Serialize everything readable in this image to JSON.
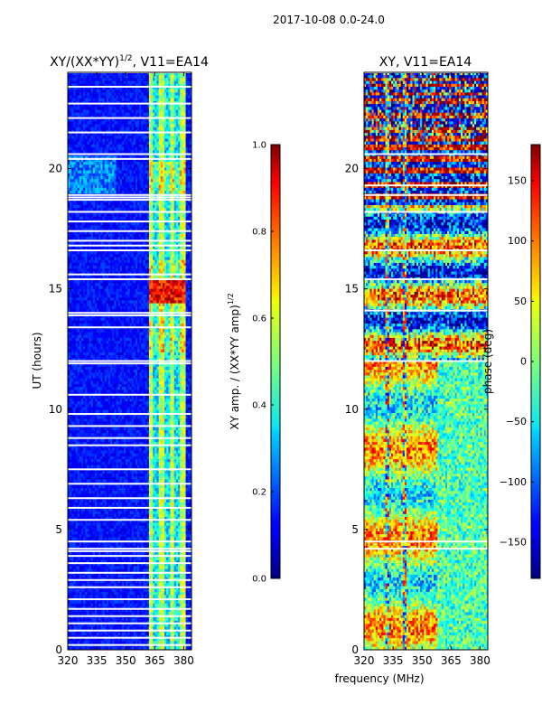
{
  "suptitle": "2017-10-08 0.0-24.0",
  "chart_data": [
    {
      "type": "heatmap",
      "title": "XY/(XX*YY)^1/2, V11=EA14",
      "title_main": "XY/(XX*YY)",
      "title_exp": "1/2",
      "title_tail": ", V11=EA14",
      "xlabel": "",
      "ylabel": "UT (hours)",
      "xlim": [
        320,
        384
      ],
      "ylim": [
        0,
        24
      ],
      "xticks": [
        320,
        335,
        350,
        365,
        380
      ],
      "yticks": [
        0,
        5,
        10,
        15,
        20
      ],
      "colorbar": {
        "label": "XY amp. / (XX*YY amp)^1/2",
        "label_main": "XY amp. / (XX*YY amp)",
        "label_exp": "1/2",
        "range": [
          0.0,
          1.0
        ],
        "ticks": [
          "0.0",
          "0.2",
          "0.4",
          "0.6",
          "0.8",
          "1.0"
        ],
        "colormap": "jet"
      },
      "blank_rows_ut": [
        24.0,
        23.4,
        22.7,
        22.1,
        21.5,
        20.6,
        20.4,
        18.9,
        18.8,
        18.7,
        18.2,
        17.8,
        17.4,
        17.0,
        16.8,
        16.6,
        15.6,
        15.4,
        14.0,
        13.9,
        13.4,
        12.0,
        11.9,
        10.6,
        9.8,
        9.3,
        8.8,
        8.5,
        7.5,
        6.9,
        6.3,
        5.9,
        5.4,
        4.5,
        4.2,
        4.1,
        3.9,
        3.6,
        3.2,
        2.9,
        2.6,
        2.1,
        1.7,
        1.4,
        1.1,
        0.8,
        0.5,
        0.2
      ],
      "bright_channel_range_mhz": [
        362,
        381
      ],
      "peak_ut_range": [
        14.4,
        15.4
      ]
    },
    {
      "type": "heatmap",
      "title": "XY, V11=EA14",
      "xlabel": "frequency (MHz)",
      "ylabel": "",
      "xlim": [
        320,
        384
      ],
      "ylim": [
        0,
        24
      ],
      "xticks": [
        320,
        335,
        350,
        365,
        380
      ],
      "yticks": [
        0,
        5,
        10,
        15,
        20
      ],
      "colorbar": {
        "label": "phase (deg)",
        "range": [
          -180,
          180
        ],
        "ticks": [
          "150",
          "100",
          "50",
          "0",
          "−50",
          "−100",
          "−150"
        ],
        "tick_values": [
          150,
          100,
          50,
          0,
          -50,
          -100,
          -150
        ],
        "colormap": "jet"
      },
      "blank_rows_ut": [
        24.0,
        20.6,
        19.3,
        18.9,
        18.2,
        16.6,
        15.4,
        14.1,
        12.0,
        4.5,
        4.2
      ],
      "rfi_columns_mhz": [
        332,
        341
      ]
    }
  ]
}
